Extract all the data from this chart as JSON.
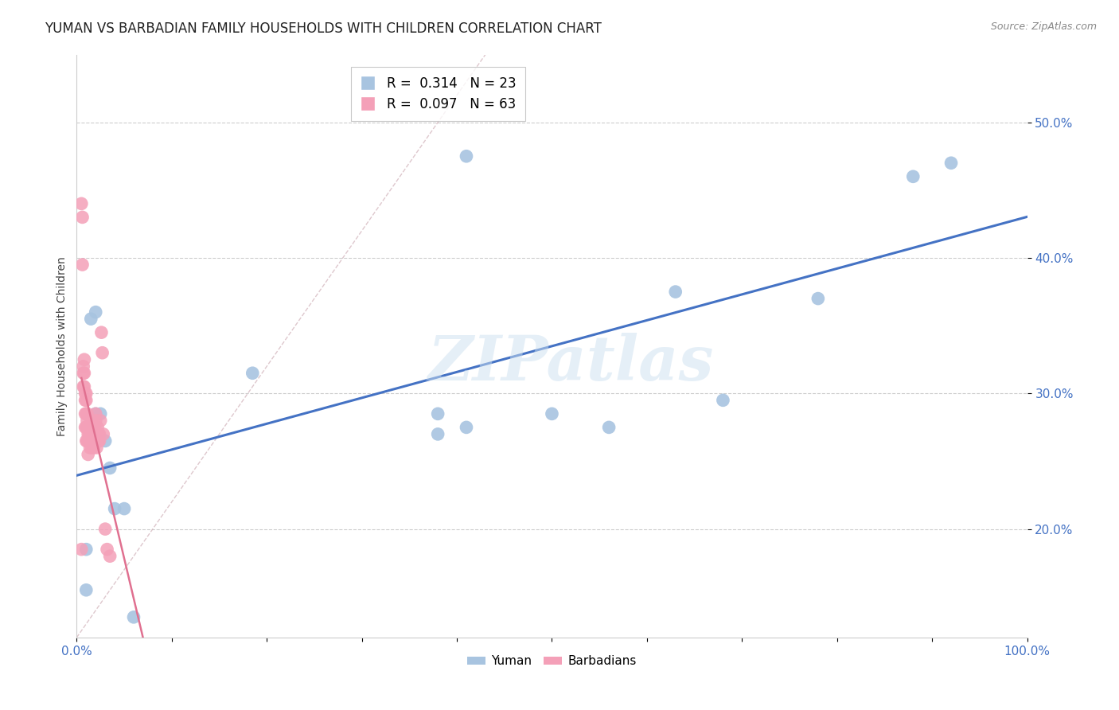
{
  "title": "YUMAN VS BARBADIAN FAMILY HOUSEHOLDS WITH CHILDREN CORRELATION CHART",
  "source": "Source: ZipAtlas.com",
  "ylabel": "Family Households with Children",
  "yuman_color": "#a8c4e0",
  "barbadian_color": "#f4a0b8",
  "yuman_line_color": "#4472c4",
  "barbadian_line_color": "#e07090",
  "watermark": "ZIPatlas",
  "legend_yuman_r": "0.314",
  "legend_yuman_n": "23",
  "legend_barbadian_r": "0.097",
  "legend_barbadian_n": "63",
  "xlim": [
    0.0,
    1.0
  ],
  "ylim": [
    0.12,
    0.55
  ],
  "yticks": [
    0.2,
    0.3,
    0.4,
    0.5
  ],
  "ytick_labels": [
    "20.0%",
    "30.0%",
    "40.0%",
    "50.0%"
  ],
  "xticks": [
    0.0,
    0.1,
    0.2,
    0.3,
    0.4,
    0.5,
    0.6,
    0.7,
    0.8,
    0.9,
    1.0
  ],
  "xtick_labels": [
    "0.0%",
    "",
    "",
    "",
    "",
    "",
    "",
    "",
    "",
    "",
    "100.0%"
  ],
  "yuman_x": [
    0.01,
    0.01,
    0.015,
    0.02,
    0.02,
    0.025,
    0.03,
    0.035,
    0.04,
    0.05,
    0.06,
    0.185,
    0.38,
    0.41,
    0.5,
    0.56,
    0.63,
    0.68,
    0.78,
    0.88,
    0.92,
    0.41,
    0.38
  ],
  "yuman_y": [
    0.155,
    0.185,
    0.355,
    0.36,
    0.285,
    0.285,
    0.265,
    0.245,
    0.215,
    0.215,
    0.135,
    0.315,
    0.285,
    0.275,
    0.285,
    0.275,
    0.375,
    0.295,
    0.37,
    0.46,
    0.47,
    0.475,
    0.27
  ],
  "barbadian_x": [
    0.005,
    0.006,
    0.006,
    0.007,
    0.007,
    0.007,
    0.008,
    0.008,
    0.008,
    0.009,
    0.009,
    0.009,
    0.009,
    0.01,
    0.01,
    0.01,
    0.01,
    0.01,
    0.011,
    0.011,
    0.011,
    0.011,
    0.012,
    0.012,
    0.012,
    0.012,
    0.013,
    0.013,
    0.013,
    0.014,
    0.014,
    0.014,
    0.015,
    0.015,
    0.015,
    0.016,
    0.016,
    0.016,
    0.017,
    0.017,
    0.018,
    0.018,
    0.018,
    0.019,
    0.019,
    0.02,
    0.02,
    0.021,
    0.021,
    0.022,
    0.022,
    0.023,
    0.023,
    0.024,
    0.024,
    0.025,
    0.026,
    0.027,
    0.028,
    0.03,
    0.032,
    0.035,
    0.005
  ],
  "barbadian_y": [
    0.44,
    0.43,
    0.395,
    0.32,
    0.315,
    0.305,
    0.325,
    0.315,
    0.305,
    0.3,
    0.295,
    0.285,
    0.275,
    0.3,
    0.295,
    0.285,
    0.275,
    0.265,
    0.285,
    0.28,
    0.275,
    0.265,
    0.275,
    0.27,
    0.265,
    0.255,
    0.275,
    0.27,
    0.265,
    0.27,
    0.265,
    0.26,
    0.28,
    0.275,
    0.27,
    0.27,
    0.265,
    0.26,
    0.275,
    0.27,
    0.27,
    0.265,
    0.26,
    0.275,
    0.27,
    0.285,
    0.28,
    0.265,
    0.26,
    0.275,
    0.27,
    0.27,
    0.265,
    0.27,
    0.265,
    0.28,
    0.345,
    0.33,
    0.27,
    0.2,
    0.185,
    0.18,
    0.185
  ],
  "background_color": "#ffffff",
  "grid_color": "#cccccc",
  "tick_color": "#4472c4",
  "title_fontsize": 12,
  "axis_label_fontsize": 10,
  "tick_fontsize": 11,
  "marker_size": 12,
  "diag_line_color": "#d0b0b8",
  "diag_line_x0": 0.0,
  "diag_line_y0": 0.12,
  "diag_line_x1": 0.43,
  "diag_line_y1": 0.55
}
